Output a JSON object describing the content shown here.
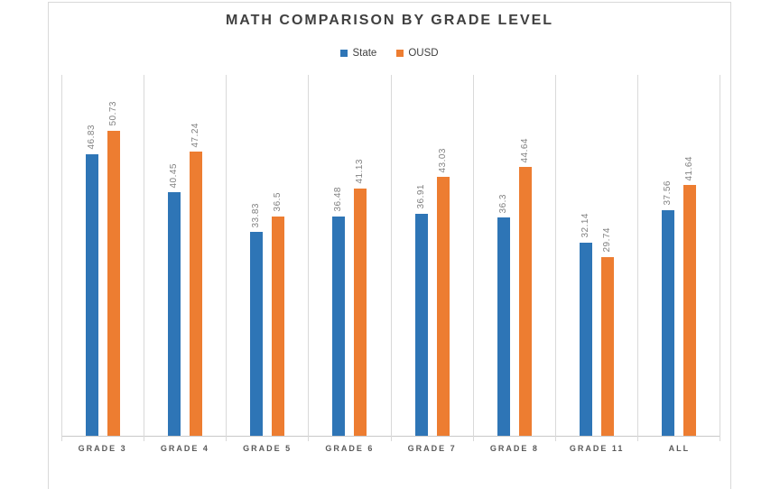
{
  "chart_data": {
    "type": "bar",
    "title": "MATH COMPARISON BY GRADE LEVEL",
    "categories": [
      "GRADE 3",
      "GRADE 4",
      "GRADE 5",
      "GRADE 6",
      "GRADE 7",
      "GRADE 8",
      "GRADE 11",
      "ALL"
    ],
    "series": [
      {
        "name": "State",
        "color": "#2E75B6",
        "values": [
          46.83,
          40.45,
          33.83,
          36.48,
          36.91,
          36.3,
          32.14,
          37.56
        ]
      },
      {
        "name": "OUSD",
        "color": "#ED7D31",
        "values": [
          50.73,
          47.24,
          36.5,
          41.13,
          43.03,
          44.64,
          29.74,
          41.64
        ]
      }
    ],
    "xlabel": "",
    "ylabel": "",
    "ylim": [
      0,
      60
    ],
    "y_axis_labels_visible": false,
    "horizontal_gridlines": false,
    "vertical_category_separators": true,
    "data_labels": true,
    "data_label_orientation": "rotated-90-up",
    "legend_position": "top-center"
  },
  "colors": {
    "grid": "#D9D9D9",
    "axis_line": "#C9C9C9",
    "title_text": "#404040",
    "legend_text": "#404040",
    "category_label_text": "#595959",
    "value_label_text": "#7F7F7F",
    "background": "#FFFFFF"
  }
}
